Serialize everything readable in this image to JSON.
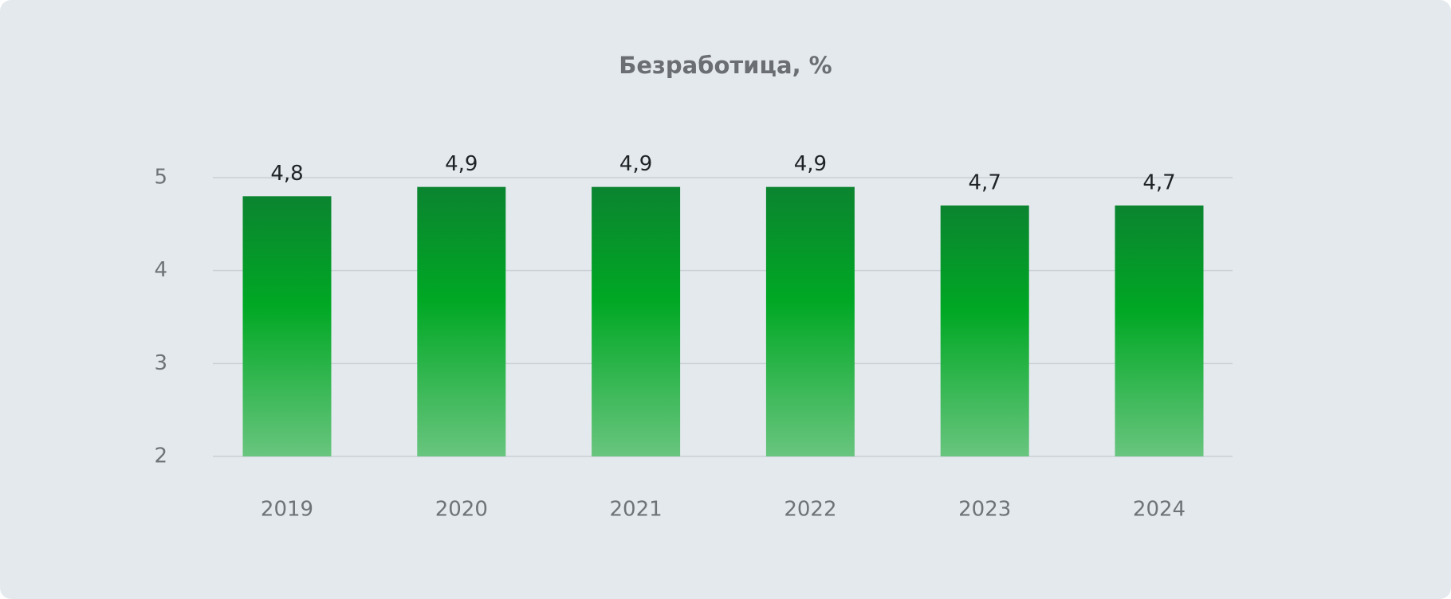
{
  "chart_data": {
    "type": "bar",
    "title": "Безработица, %",
    "categories": [
      "2019",
      "2020",
      "2021",
      "2022",
      "2023",
      "2024"
    ],
    "values": [
      4.8,
      4.9,
      4.9,
      4.9,
      4.7,
      4.7
    ],
    "value_labels": [
      "4,8",
      "4,9",
      "4,9",
      "4,9",
      "4,7",
      "4,7"
    ],
    "color": "#00a824",
    "ylim": [
      2,
      5
    ],
    "yticks": [
      2,
      3,
      4,
      5
    ],
    "grid": true
  }
}
